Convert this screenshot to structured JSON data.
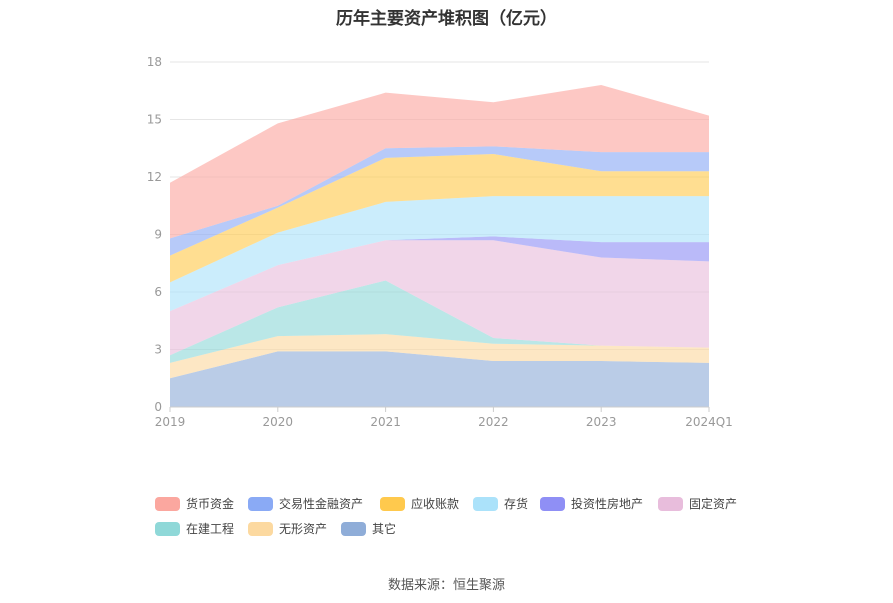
{
  "title": "历年主要资产堆积图（亿元）",
  "source": "数据来源：恒生聚源",
  "chart_data": {
    "type": "area",
    "stacked": true,
    "categories": [
      "2019",
      "2020",
      "2021",
      "2022",
      "2023",
      "2024Q1"
    ],
    "ylim": [
      0,
      18
    ],
    "yticks": [
      0,
      3,
      6,
      9,
      12,
      15,
      18
    ],
    "grid": true,
    "legend_position": "bottom",
    "series": [
      {
        "name": "其它",
        "color": "#8fadd8",
        "values": [
          1.5,
          2.9,
          2.9,
          2.4,
          2.4,
          2.3
        ]
      },
      {
        "name": "无形资产",
        "color": "#fcd9a0",
        "values": [
          0.8,
          0.8,
          0.9,
          0.9,
          0.8,
          0.8
        ]
      },
      {
        "name": "在建工程",
        "color": "#8fd8d8",
        "values": [
          0.4,
          1.5,
          2.8,
          0.3,
          0.0,
          0.0
        ]
      },
      {
        "name": "固定资产",
        "color": "#e8bddc",
        "values": [
          2.3,
          2.2,
          2.1,
          5.1,
          4.6,
          4.5
        ]
      },
      {
        "name": "投资性房地产",
        "color": "#8f8ff5",
        "values": [
          0.0,
          0.0,
          0.0,
          0.2,
          0.8,
          1.0
        ]
      },
      {
        "name": "存货",
        "color": "#abe2fa",
        "values": [
          1.5,
          1.7,
          2.0,
          2.1,
          2.4,
          2.4
        ]
      },
      {
        "name": "应收账款",
        "color": "#ffc94d",
        "values": [
          1.4,
          1.3,
          2.3,
          2.2,
          1.3,
          1.3
        ]
      },
      {
        "name": "交易性金融资产",
        "color": "#8aaaf5",
        "values": [
          0.9,
          0.1,
          0.5,
          0.4,
          1.0,
          1.0
        ]
      },
      {
        "name": "货币资金",
        "color": "#fba79f",
        "values": [
          2.9,
          4.3,
          2.9,
          2.3,
          3.5,
          1.9
        ]
      }
    ],
    "legend_order": [
      "货币资金",
      "交易性金融资产",
      "应收账款",
      "存货",
      "投资性房地产",
      "固定资产",
      "在建工程",
      "无形资产",
      "其它"
    ]
  }
}
